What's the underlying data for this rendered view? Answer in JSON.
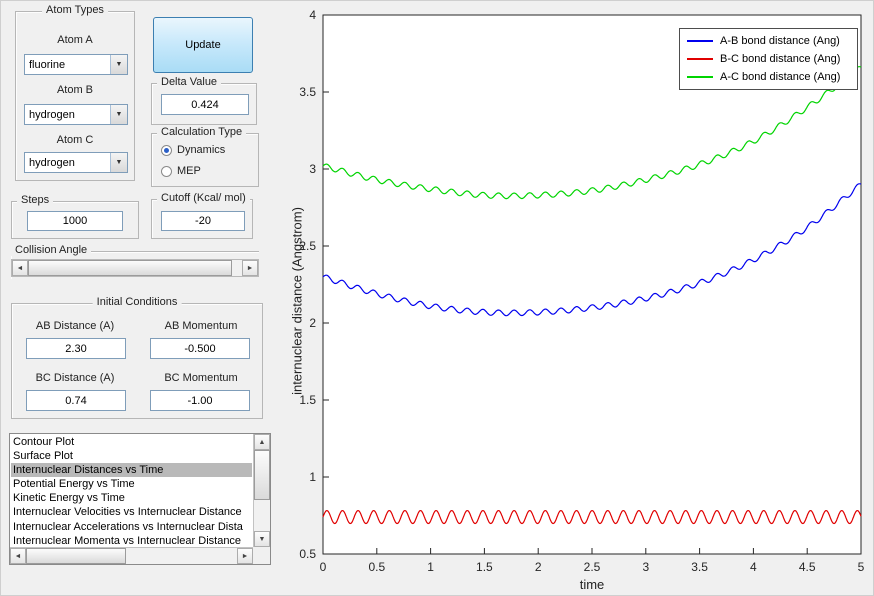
{
  "atom_types": {
    "title": "Atom Types",
    "atom_a_label": "Atom A",
    "atom_a_value": "fluorine",
    "atom_b_label": "Atom B",
    "atom_b_value": "hydrogen",
    "atom_c_label": "Atom C",
    "atom_c_value": "hydrogen"
  },
  "update_button": "Update",
  "delta": {
    "title": "Delta Value",
    "value": "0.424"
  },
  "calculation": {
    "title": "Calculation Type",
    "options": [
      {
        "label": "Dynamics",
        "selected": true
      },
      {
        "label": "MEP",
        "selected": false
      }
    ]
  },
  "steps": {
    "title": "Steps",
    "value": "1000"
  },
  "cutoff": {
    "title": "Cutoff (Kcal/ mol)",
    "value": "-20"
  },
  "collision_angle": {
    "label": "Collision Angle"
  },
  "initial_conditions": {
    "title": "Initial Conditions",
    "ab_distance_label": "AB Distance (A)",
    "ab_distance_value": "2.30",
    "ab_momentum_label": "AB Momentum",
    "ab_momentum_value": "-0.500",
    "bc_distance_label": "BC Distance (A)",
    "bc_distance_value": "0.74",
    "bc_momentum_label": "BC Momentum",
    "bc_momentum_value": "-1.00"
  },
  "plot_list": {
    "items": [
      "Contour Plot",
      "Surface Plot",
      "Internuclear Distances vs Time",
      "Potential Energy vs Time",
      "Kinetic Energy vs Time",
      "Internuclear Velocities vs Internuclear Distance",
      "Internuclear Accelerations vs Internuclear Dista",
      "Internuclear Momenta vs Internuclear Distance"
    ],
    "selected_index": 2
  },
  "chart_data": {
    "type": "line",
    "title": "",
    "xlabel": "time",
    "ylabel": "internuclear distance (Angstrom)",
    "xlim": [
      0,
      5
    ],
    "ylim": [
      0.5,
      4
    ],
    "xticks": [
      0,
      0.5,
      1,
      1.5,
      2,
      2.5,
      3,
      3.5,
      4,
      4.5,
      5
    ],
    "yticks": [
      0.5,
      1,
      1.5,
      2,
      2.5,
      3,
      3.5,
      4
    ],
    "grid": false,
    "legend_position": "top-right",
    "series": [
      {
        "name": "A-B bond distance (Ang)",
        "color": "#0000ee",
        "baseline_t": [
          0,
          0.5,
          1,
          1.5,
          2,
          2.5,
          3,
          3.5,
          4,
          4.5,
          5
        ],
        "baseline_v": [
          2.3,
          2.19,
          2.11,
          2.07,
          2.07,
          2.1,
          2.16,
          2.26,
          2.41,
          2.62,
          2.9
        ],
        "osc_amplitude": 0.018,
        "osc_period": 0.145
      },
      {
        "name": "B-C bond distance (Ang)",
        "color": "#e00000",
        "baseline_t": [
          0,
          5
        ],
        "baseline_v": [
          0.74,
          0.74
        ],
        "osc_amplitude": 0.042,
        "osc_period": 0.145
      },
      {
        "name": "A-C bond distance (Ang)",
        "color": "#00d400",
        "baseline_t": [
          0,
          0.5,
          1,
          1.5,
          2,
          2.5,
          3,
          3.5,
          4,
          4.5,
          5
        ],
        "baseline_v": [
          3.02,
          2.93,
          2.87,
          2.83,
          2.83,
          2.86,
          2.93,
          3.03,
          3.18,
          3.4,
          3.66
        ],
        "osc_amplitude": 0.018,
        "osc_period": 0.145
      }
    ]
  }
}
